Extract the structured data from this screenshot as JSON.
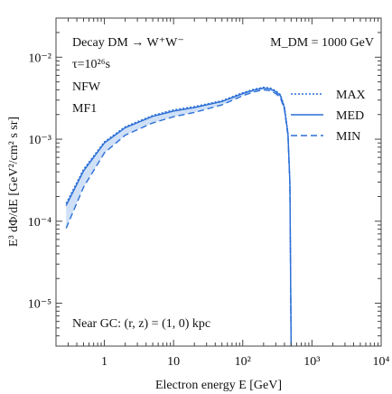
{
  "chart_data": {
    "type": "line",
    "xscale": "log",
    "yscale": "log",
    "xlim": [
      0.2,
      10000
    ],
    "ylim": [
      3e-06,
      0.03
    ],
    "xlabel": "Electron energy E [GeV]",
    "ylabel": "E³ dΦ/dE [GeV²/cm² s sr]",
    "x_ticks": [
      {
        "v": 1,
        "label": "1"
      },
      {
        "v": 10,
        "label": "10"
      },
      {
        "v": 100,
        "label": "10²"
      },
      {
        "v": 1000,
        "label": "10³"
      },
      {
        "v": 10000,
        "label": "10⁴"
      }
    ],
    "y_ticks": [
      {
        "v": 1e-05,
        "label": "10⁻⁵"
      },
      {
        "v": 0.0001,
        "label": "10⁻⁴"
      },
      {
        "v": 0.001,
        "label": "10⁻³"
      },
      {
        "v": 0.01,
        "label": "10⁻²"
      }
    ],
    "annotations": {
      "process": "Decay DM → W⁺W⁻",
      "lifetime": "τ=10²⁶s",
      "profile": "NFW",
      "model": "MF1",
      "mass": "M_DM = 1000 GeV",
      "location": "Near GC: (r, z) = (1, 0) kpc"
    },
    "legend_position": "top-right",
    "colors": {
      "line": "#2b6fd6",
      "band": "#cfe0f7"
    },
    "series": [
      {
        "name": "MAX",
        "style": "dotted",
        "x": [
          0.28,
          0.5,
          1,
          2,
          5,
          10,
          20,
          50,
          100,
          150,
          200,
          250,
          300,
          350,
          400,
          450,
          480,
          500
        ],
        "y": [
          0.000165,
          0.00043,
          0.00093,
          0.00142,
          0.00195,
          0.00228,
          0.0025,
          0.00295,
          0.0037,
          0.0041,
          0.0043,
          0.0042,
          0.0039,
          0.0035,
          0.0025,
          0.0012,
          0.0003,
          3e-06
        ]
      },
      {
        "name": "MED",
        "style": "solid",
        "x": [
          0.28,
          0.5,
          1,
          2,
          5,
          10,
          20,
          50,
          100,
          150,
          200,
          250,
          300,
          350,
          400,
          450,
          480,
          500
        ],
        "y": [
          0.000155,
          0.00041,
          0.0009,
          0.00138,
          0.0019,
          0.0022,
          0.00243,
          0.00288,
          0.0036,
          0.004,
          0.0042,
          0.0041,
          0.0038,
          0.0034,
          0.0024,
          0.00115,
          0.00029,
          3e-06
        ]
      },
      {
        "name": "MIN",
        "style": "dashed",
        "x": [
          0.28,
          0.5,
          1,
          2,
          5,
          10,
          20,
          50,
          100,
          150,
          200,
          250,
          300,
          350,
          400,
          450,
          480,
          500
        ],
        "y": [
          8.2e-05,
          0.00026,
          0.00068,
          0.00112,
          0.00158,
          0.00188,
          0.00212,
          0.00262,
          0.0034,
          0.0038,
          0.004,
          0.0039,
          0.0036,
          0.0032,
          0.0023,
          0.0011,
          0.00028,
          3e-06
        ]
      }
    ]
  }
}
